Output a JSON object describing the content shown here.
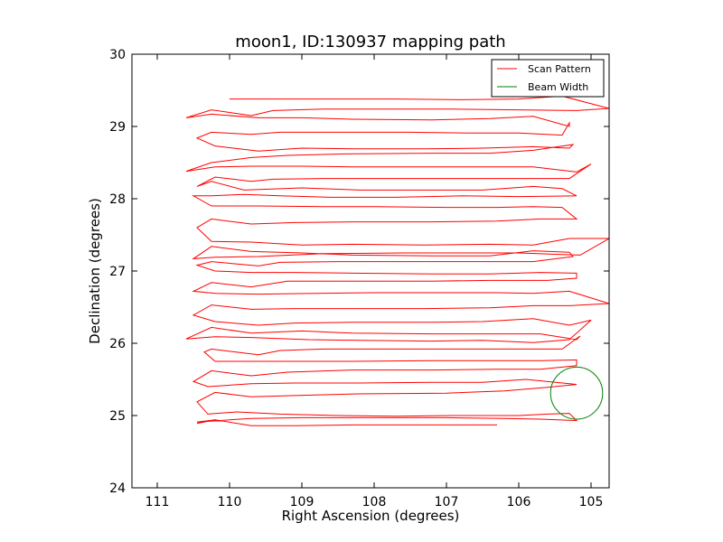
{
  "chart_data": {
    "type": "line",
    "title": "moon1, ID:130937 mapping path",
    "xlabel": "Right Ascension (degrees)",
    "ylabel": "Declination (degrees)",
    "xlim": [
      111.35,
      104.75
    ],
    "ylim": [
      24,
      30
    ],
    "x_inverted": true,
    "xticks": [
      111,
      110,
      109,
      108,
      107,
      106,
      105
    ],
    "yticks": [
      24,
      25,
      26,
      27,
      28,
      29,
      30
    ],
    "grid": false,
    "legend_position": "top-right",
    "series": [
      {
        "name": "Scan Pattern",
        "color": "#ff0000",
        "type": "line",
        "points": [
          [
            106.3,
            24.87
          ],
          [
            107.2,
            24.87
          ],
          [
            108.3,
            24.87
          ],
          [
            109.1,
            24.86
          ],
          [
            109.7,
            24.86
          ],
          [
            110.2,
            24.94
          ],
          [
            110.45,
            24.89
          ],
          [
            110.2,
            24.94
          ],
          [
            110.45,
            24.91
          ],
          [
            109.7,
            24.96
          ],
          [
            109.0,
            24.97
          ],
          [
            108.3,
            24.97
          ],
          [
            107.0,
            24.97
          ],
          [
            106.2,
            24.96
          ],
          [
            105.7,
            24.95
          ],
          [
            105.2,
            24.93
          ],
          [
            105.3,
            25.03
          ],
          [
            105.6,
            25.02
          ],
          [
            106.0,
            25.0
          ],
          [
            106.9,
            25.0
          ],
          [
            107.7,
            24.99
          ],
          [
            108.5,
            25.0
          ],
          [
            109.3,
            25.02
          ],
          [
            109.9,
            25.05
          ],
          [
            110.3,
            25.02
          ],
          [
            110.45,
            25.19
          ],
          [
            110.2,
            25.32
          ],
          [
            109.7,
            25.26
          ],
          [
            109.0,
            25.28
          ],
          [
            108.2,
            25.3
          ],
          [
            107.0,
            25.31
          ],
          [
            106.2,
            25.34
          ],
          [
            105.6,
            25.39
          ],
          [
            105.2,
            25.43
          ],
          [
            105.3,
            25.44
          ],
          [
            105.9,
            25.5
          ],
          [
            106.5,
            25.46
          ],
          [
            107.2,
            25.46
          ],
          [
            108.2,
            25.45
          ],
          [
            109.1,
            25.45
          ],
          [
            109.7,
            25.44
          ],
          [
            110.3,
            25.4
          ],
          [
            110.5,
            25.47
          ],
          [
            110.25,
            25.62
          ],
          [
            109.7,
            25.55
          ],
          [
            109.2,
            25.6
          ],
          [
            108.3,
            25.63
          ],
          [
            107.2,
            25.63
          ],
          [
            106.3,
            25.64
          ],
          [
            105.7,
            25.64
          ],
          [
            105.2,
            25.69
          ],
          [
            105.2,
            25.77
          ],
          [
            105.7,
            25.76
          ],
          [
            106.3,
            25.76
          ],
          [
            107.2,
            25.76
          ],
          [
            108.3,
            25.75
          ],
          [
            109.1,
            25.75
          ],
          [
            110.2,
            25.75
          ],
          [
            110.35,
            25.88
          ],
          [
            110.25,
            25.92
          ],
          [
            109.6,
            25.84
          ],
          [
            109.3,
            25.9
          ],
          [
            108.7,
            25.92
          ],
          [
            107.7,
            25.92
          ],
          [
            106.9,
            25.92
          ],
          [
            106.2,
            25.92
          ],
          [
            105.4,
            25.92
          ],
          [
            105.15,
            26.1
          ],
          [
            105.2,
            26.05
          ],
          [
            105.7,
            26.13
          ],
          [
            106.4,
            26.13
          ],
          [
            107.2,
            26.13
          ],
          [
            108.3,
            26.14
          ],
          [
            109.0,
            26.17
          ],
          [
            109.7,
            26.14
          ],
          [
            110.25,
            26.22
          ],
          [
            110.6,
            26.06
          ],
          [
            110.2,
            26.09
          ],
          [
            109.7,
            26.08
          ],
          [
            108.9,
            26.05
          ],
          [
            108.2,
            26.04
          ],
          [
            107.2,
            26.03
          ],
          [
            106.5,
            26.04
          ],
          [
            105.8,
            26.01
          ],
          [
            105.3,
            26.05
          ],
          [
            105.0,
            26.32
          ],
          [
            105.3,
            26.25
          ],
          [
            105.8,
            26.34
          ],
          [
            106.5,
            26.3
          ],
          [
            107.2,
            26.29
          ],
          [
            108.3,
            26.29
          ],
          [
            109.1,
            26.28
          ],
          [
            109.6,
            26.25
          ],
          [
            110.2,
            26.3
          ],
          [
            110.5,
            26.39
          ],
          [
            110.25,
            26.53
          ],
          [
            109.7,
            26.47
          ],
          [
            109.1,
            26.48
          ],
          [
            108.4,
            26.48
          ],
          [
            107.3,
            26.48
          ],
          [
            106.4,
            26.49
          ],
          [
            105.8,
            26.52
          ],
          [
            105.3,
            26.52
          ],
          [
            104.75,
            26.55
          ],
          [
            105.3,
            26.72
          ],
          [
            105.8,
            26.69
          ],
          [
            106.3,
            26.7
          ],
          [
            107.1,
            26.7
          ],
          [
            108.0,
            26.7
          ],
          [
            108.8,
            26.69
          ],
          [
            109.6,
            26.68
          ],
          [
            110.2,
            26.69
          ],
          [
            110.5,
            26.72
          ],
          [
            110.25,
            26.84
          ],
          [
            109.7,
            26.78
          ],
          [
            109.2,
            26.86
          ],
          [
            108.4,
            26.86
          ],
          [
            107.2,
            26.86
          ],
          [
            106.4,
            26.87
          ],
          [
            105.6,
            26.87
          ],
          [
            105.2,
            26.9
          ],
          [
            105.2,
            26.97
          ],
          [
            105.7,
            26.98
          ],
          [
            106.4,
            26.96
          ],
          [
            107.2,
            26.96
          ],
          [
            108.3,
            26.97
          ],
          [
            109.1,
            26.98
          ],
          [
            109.7,
            26.98
          ],
          [
            110.2,
            27.0
          ],
          [
            110.45,
            27.08
          ],
          [
            110.25,
            27.13
          ],
          [
            109.6,
            27.07
          ],
          [
            109.3,
            27.12
          ],
          [
            108.5,
            27.13
          ],
          [
            107.5,
            27.13
          ],
          [
            106.5,
            27.13
          ],
          [
            105.8,
            27.13
          ],
          [
            105.25,
            27.2
          ],
          [
            105.3,
            27.26
          ],
          [
            105.8,
            27.28
          ],
          [
            106.4,
            27.21
          ],
          [
            107.2,
            27.21
          ],
          [
            108.3,
            27.22
          ],
          [
            109.0,
            27.25
          ],
          [
            109.7,
            27.27
          ],
          [
            110.25,
            27.34
          ],
          [
            110.5,
            27.17
          ],
          [
            110.2,
            27.19
          ],
          [
            109.6,
            27.2
          ],
          [
            108.7,
            27.24
          ],
          [
            107.6,
            27.25
          ],
          [
            106.7,
            27.25
          ],
          [
            106.0,
            27.25
          ],
          [
            105.15,
            27.22
          ],
          [
            104.75,
            27.45
          ],
          [
            105.3,
            27.45
          ],
          [
            105.8,
            27.36
          ],
          [
            106.4,
            27.37
          ],
          [
            107.3,
            27.36
          ],
          [
            108.3,
            27.37
          ],
          [
            109.0,
            27.36
          ],
          [
            109.7,
            27.4
          ],
          [
            110.25,
            27.41
          ],
          [
            110.45,
            27.6
          ],
          [
            110.25,
            27.72
          ],
          [
            109.7,
            27.65
          ],
          [
            109.1,
            27.67
          ],
          [
            108.3,
            27.68
          ],
          [
            107.2,
            27.68
          ],
          [
            106.3,
            27.69
          ],
          [
            105.7,
            27.72
          ],
          [
            105.2,
            27.72
          ],
          [
            105.4,
            27.88
          ],
          [
            105.8,
            27.89
          ],
          [
            106.3,
            27.88
          ],
          [
            107.0,
            27.88
          ],
          [
            108.0,
            27.89
          ],
          [
            108.7,
            27.89
          ],
          [
            109.6,
            27.9
          ],
          [
            110.25,
            27.9
          ],
          [
            110.5,
            28.04
          ],
          [
            110.25,
            28.04
          ],
          [
            109.8,
            28.06
          ],
          [
            109.3,
            28.04
          ],
          [
            108.6,
            28.02
          ],
          [
            107.7,
            28.02
          ],
          [
            106.8,
            28.04
          ],
          [
            106.0,
            28.03
          ],
          [
            105.2,
            28.04
          ],
          [
            105.4,
            28.14
          ],
          [
            105.8,
            28.17
          ],
          [
            106.5,
            28.12
          ],
          [
            107.2,
            28.12
          ],
          [
            108.2,
            28.12
          ],
          [
            109.0,
            28.15
          ],
          [
            109.8,
            28.12
          ],
          [
            110.25,
            28.24
          ],
          [
            110.45,
            28.17
          ],
          [
            110.2,
            28.3
          ],
          [
            109.7,
            28.24
          ],
          [
            109.4,
            28.27
          ],
          [
            108.7,
            28.28
          ],
          [
            107.7,
            28.28
          ],
          [
            106.7,
            28.28
          ],
          [
            106.0,
            28.28
          ],
          [
            105.3,
            28.28
          ],
          [
            105.0,
            28.48
          ],
          [
            105.2,
            28.37
          ],
          [
            105.8,
            28.44
          ],
          [
            106.4,
            28.44
          ],
          [
            107.3,
            28.44
          ],
          [
            108.3,
            28.44
          ],
          [
            109.0,
            28.45
          ],
          [
            109.7,
            28.45
          ],
          [
            110.2,
            28.44
          ],
          [
            110.6,
            28.38
          ],
          [
            110.25,
            28.5
          ],
          [
            109.7,
            28.57
          ],
          [
            109.2,
            28.6
          ],
          [
            108.4,
            28.62
          ],
          [
            107.2,
            28.63
          ],
          [
            106.4,
            28.63
          ],
          [
            105.8,
            28.67
          ],
          [
            105.25,
            28.75
          ],
          [
            105.3,
            28.7
          ],
          [
            105.8,
            28.72
          ],
          [
            106.5,
            28.7
          ],
          [
            107.3,
            28.69
          ],
          [
            108.3,
            28.69
          ],
          [
            109.0,
            28.7
          ],
          [
            109.6,
            28.66
          ],
          [
            110.2,
            28.73
          ],
          [
            110.45,
            28.84
          ],
          [
            110.25,
            28.92
          ],
          [
            109.7,
            28.89
          ],
          [
            109.3,
            28.92
          ],
          [
            108.5,
            28.92
          ],
          [
            107.5,
            28.92
          ],
          [
            106.7,
            28.91
          ],
          [
            106.0,
            28.91
          ],
          [
            105.4,
            28.88
          ],
          [
            105.3,
            29.05
          ],
          [
            105.3,
            29.0
          ],
          [
            105.8,
            29.14
          ],
          [
            106.4,
            29.11
          ],
          [
            107.2,
            29.09
          ],
          [
            108.3,
            29.1
          ],
          [
            109.0,
            29.12
          ],
          [
            109.6,
            29.12
          ],
          [
            110.25,
            29.17
          ],
          [
            110.6,
            29.12
          ],
          [
            110.25,
            29.23
          ],
          [
            109.7,
            29.15
          ],
          [
            109.4,
            29.22
          ],
          [
            108.7,
            29.24
          ],
          [
            107.7,
            29.24
          ],
          [
            106.9,
            29.24
          ],
          [
            106.0,
            29.23
          ],
          [
            105.2,
            29.22
          ],
          [
            104.75,
            29.25
          ],
          [
            105.4,
            29.42
          ],
          [
            106.0,
            29.38
          ],
          [
            106.8,
            29.37
          ],
          [
            107.7,
            29.38
          ],
          [
            108.6,
            29.38
          ],
          [
            109.3,
            29.38
          ],
          [
            110.0,
            29.38
          ]
        ]
      },
      {
        "name": "Beam Width",
        "color": "#008000",
        "type": "circle",
        "center": [
          105.2,
          25.31
        ],
        "radius_deg": 0.36
      }
    ]
  }
}
